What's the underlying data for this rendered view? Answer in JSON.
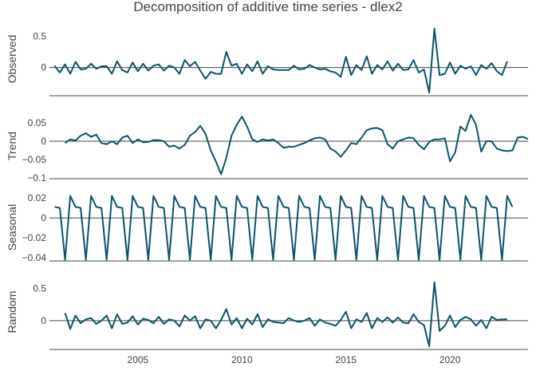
{
  "chart_data": {
    "type": "line",
    "title": "Decomposition of additive time series - dlex2",
    "line_color": "#0b5369",
    "x_ticks": [
      2005,
      2010,
      2015,
      2020
    ],
    "x_range": [
      2000.75,
      2023.75
    ],
    "time": {
      "start": 2001.0,
      "step": 0.25
    },
    "panels": [
      {
        "name": "Observed",
        "ylabel": "Observed",
        "ylim": [
          -0.45,
          0.72
        ],
        "yticks": [
          {
            "v": 0.5,
            "label": "0.5"
          },
          {
            "v": 0,
            "label": "0"
          }
        ],
        "values": [
          0.03,
          -0.08,
          0.05,
          -0.1,
          0.09,
          -0.03,
          -0.02,
          0.06,
          -0.02,
          0.02,
          0.02,
          -0.1,
          0.1,
          -0.04,
          -0.08,
          0.08,
          -0.06,
          0.06,
          -0.05,
          0.03,
          0.05,
          -0.05,
          0.03,
          0.0,
          -0.1,
          0.12,
          0.02,
          0.09,
          -0.05,
          -0.18,
          -0.07,
          -0.1,
          -0.1,
          0.25,
          0.03,
          0.06,
          -0.1,
          0.05,
          -0.06,
          0.1,
          -0.1,
          0.02,
          -0.03,
          -0.04,
          -0.04,
          -0.04,
          0.03,
          -0.03,
          -0.02,
          0.04,
          0.0,
          -0.03,
          -0.02,
          -0.06,
          -0.08,
          -0.15,
          0.17,
          -0.12,
          0.04,
          -0.04,
          0.18,
          -0.1,
          0.04,
          -0.03,
          0.1,
          -0.05,
          0.06,
          -0.04,
          -0.03,
          0.12,
          -0.08,
          -0.03,
          -0.4,
          0.62,
          -0.12,
          -0.1,
          0.08,
          -0.1,
          0.03,
          -0.02,
          0.02,
          -0.12,
          0.04,
          -0.02,
          0.07,
          -0.06,
          -0.12,
          0.1
        ]
      },
      {
        "name": "Trend",
        "ylabel": "Trend",
        "ylim": [
          -0.102,
          0.076
        ],
        "yticks": [
          {
            "v": 0.05,
            "label": "0.05"
          },
          {
            "v": 0,
            "label": "0"
          },
          {
            "v": -0.05,
            "label": "−0.05"
          },
          {
            "v": -0.1,
            "label": "−0.1"
          }
        ],
        "values": [
          null,
          null,
          -0.005,
          0.005,
          0.002,
          0.015,
          0.022,
          0.012,
          0.018,
          -0.005,
          -0.008,
          0.0,
          -0.008,
          0.01,
          0.015,
          -0.005,
          0.005,
          -0.003,
          -0.002,
          0.003,
          0.003,
          0.0,
          -0.015,
          -0.012,
          -0.02,
          -0.01,
          0.015,
          0.025,
          0.042,
          0.02,
          -0.025,
          -0.055,
          -0.09,
          -0.045,
          0.015,
          0.045,
          0.067,
          0.04,
          0.005,
          -0.002,
          0.005,
          0.002,
          0.005,
          -0.005,
          -0.018,
          -0.015,
          -0.015,
          -0.01,
          -0.005,
          0.002,
          0.008,
          0.01,
          0.005,
          -0.02,
          -0.028,
          -0.042,
          -0.025,
          -0.005,
          -0.008,
          0.01,
          0.03,
          0.035,
          0.036,
          0.03,
          -0.008,
          -0.02,
          0.0,
          0.005,
          0.01,
          0.008,
          -0.01,
          -0.022,
          -0.002,
          0.005,
          0.005,
          0.008,
          -0.055,
          -0.03,
          0.04,
          0.028,
          0.072,
          0.045,
          -0.028,
          0.0,
          0.0,
          -0.02,
          -0.025,
          -0.027,
          -0.025,
          0.01,
          0.012,
          0.006
        ]
      },
      {
        "name": "Seasonal",
        "ylabel": "Seasonal",
        "ylim": [
          -0.043,
          0.024
        ],
        "yticks": [
          {
            "v": 0.02,
            "label": "0.02"
          },
          {
            "v": 0,
            "label": "0"
          },
          {
            "v": -0.02,
            "label": "−0.02"
          },
          {
            "v": -0.04,
            "label": "−0.04"
          }
        ],
        "pattern": [
          0.011,
          0.01,
          -0.042,
          0.022
        ],
        "pattern_start_index": 0
      },
      {
        "name": "Random",
        "ylabel": "Random",
        "ylim": [
          -0.45,
          0.72
        ],
        "yticks": [
          {
            "v": 0.5,
            "label": "0.5"
          },
          {
            "v": 0,
            "label": "0"
          }
        ],
        "values": [
          null,
          null,
          0.12,
          -0.13,
          0.08,
          -0.04,
          0.02,
          0.04,
          -0.05,
          0.0,
          0.08,
          -0.12,
          0.1,
          -0.05,
          -0.03,
          0.07,
          -0.06,
          0.03,
          0.01,
          -0.04,
          0.06,
          -0.05,
          0.02,
          0.0,
          -0.09,
          0.08,
          0.0,
          0.07,
          -0.12,
          0.02,
          0.0,
          -0.12,
          0.01,
          0.18,
          -0.06,
          0.04,
          -0.12,
          0.03,
          -0.06,
          0.1,
          -0.1,
          0.02,
          -0.02,
          -0.03,
          -0.04,
          0.04,
          0.0,
          -0.02,
          0.0,
          0.04,
          -0.08,
          0.02,
          -0.03,
          -0.05,
          -0.08,
          0.01,
          0.14,
          -0.12,
          0.02,
          -0.02,
          0.12,
          -0.12,
          0.04,
          -0.02,
          0.05,
          -0.03,
          0.05,
          -0.03,
          -0.04,
          0.1,
          -0.02,
          -0.07,
          -0.4,
          0.6,
          -0.16,
          -0.08,
          0.08,
          -0.1,
          0.01,
          0.06,
          0.02,
          -0.08,
          0.01,
          -0.12,
          0.06,
          0.01,
          0.02,
          0.02
        ]
      }
    ]
  }
}
